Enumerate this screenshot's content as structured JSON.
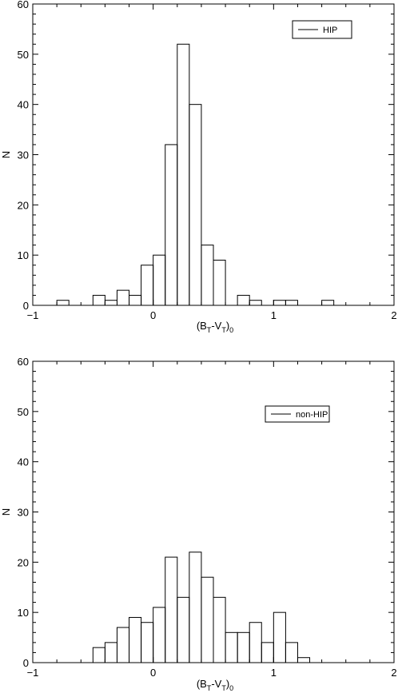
{
  "chart_data": [
    {
      "type": "bar",
      "subtype": "histogram",
      "bin_width": 0.1,
      "xlim": [
        -1,
        2
      ],
      "ylim": [
        0,
        60
      ],
      "xticks": [
        -1,
        0,
        1,
        2
      ],
      "yticks": [
        0,
        10,
        20,
        30,
        40,
        50,
        60
      ],
      "xlabel": "(B_T-V_T)_0",
      "ylabel": "N",
      "legend": {
        "label": "HIP",
        "position": "top-right"
      },
      "bins": [
        {
          "x": -0.8,
          "value": 1
        },
        {
          "x": -0.5,
          "value": 2
        },
        {
          "x": -0.4,
          "value": 1
        },
        {
          "x": -0.3,
          "value": 3
        },
        {
          "x": -0.2,
          "value": 2
        },
        {
          "x": -0.1,
          "value": 8
        },
        {
          "x": 0.0,
          "value": 10
        },
        {
          "x": 0.1,
          "value": 32
        },
        {
          "x": 0.2,
          "value": 52
        },
        {
          "x": 0.3,
          "value": 40
        },
        {
          "x": 0.4,
          "value": 12
        },
        {
          "x": 0.5,
          "value": 9
        },
        {
          "x": 0.7,
          "value": 2
        },
        {
          "x": 0.8,
          "value": 1
        },
        {
          "x": 1.0,
          "value": 1
        },
        {
          "x": 1.1,
          "value": 1
        },
        {
          "x": 1.4,
          "value": 1
        }
      ]
    },
    {
      "type": "bar",
      "subtype": "histogram",
      "bin_width": 0.1,
      "xlim": [
        -1,
        2
      ],
      "ylim": [
        0,
        60
      ],
      "xticks": [
        -1,
        0,
        1,
        2
      ],
      "yticks": [
        0,
        10,
        20,
        30,
        40,
        50,
        60
      ],
      "xlabel": "(B_T-V_T)_0",
      "ylabel": "N",
      "legend": {
        "label": "non-HIP",
        "position": "top-right"
      },
      "bins": [
        {
          "x": -0.5,
          "value": 3
        },
        {
          "x": -0.4,
          "value": 4
        },
        {
          "x": -0.3,
          "value": 7
        },
        {
          "x": -0.2,
          "value": 9
        },
        {
          "x": -0.1,
          "value": 8
        },
        {
          "x": 0.0,
          "value": 11
        },
        {
          "x": 0.1,
          "value": 21
        },
        {
          "x": 0.2,
          "value": 13
        },
        {
          "x": 0.3,
          "value": 22
        },
        {
          "x": 0.4,
          "value": 17
        },
        {
          "x": 0.5,
          "value": 13
        },
        {
          "x": 0.6,
          "value": 6
        },
        {
          "x": 0.7,
          "value": 6
        },
        {
          "x": 0.8,
          "value": 8
        },
        {
          "x": 0.9,
          "value": 4
        },
        {
          "x": 1.0,
          "value": 10
        },
        {
          "x": 1.1,
          "value": 4
        },
        {
          "x": 1.2,
          "value": 1
        }
      ]
    }
  ]
}
